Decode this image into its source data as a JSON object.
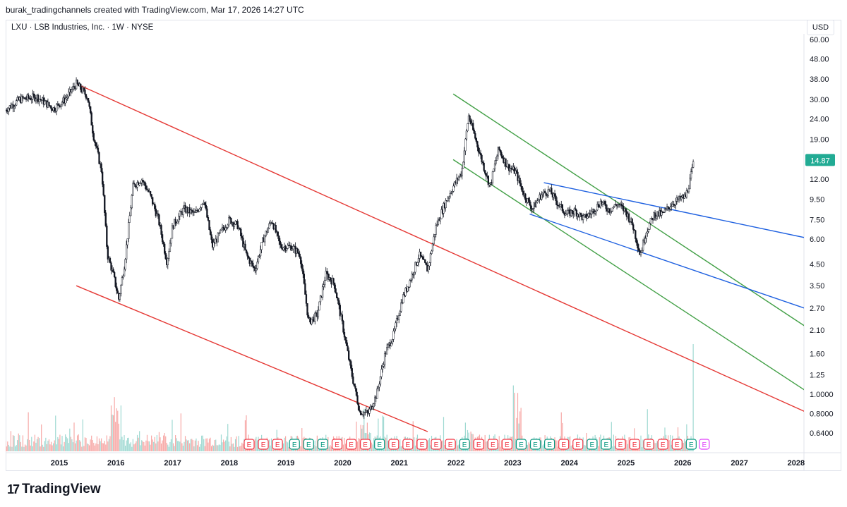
{
  "header": {
    "credit": "burak_tradingchannels created with TradingView.com, Mar 17, 2026 14:27 UTC"
  },
  "symbol_line": "LXU · LSB Industries, Inc. · 1W · NYSE",
  "currency": "USD",
  "brand": {
    "name": "TradingView",
    "mark": "17"
  },
  "colors": {
    "up": "#26a69a",
    "down": "#ef5350",
    "candle": "#131722",
    "red_channel": "#e53935",
    "green_channel": "#43a047",
    "blue_channel": "#1e60e0",
    "last_price_bg": "#22ab94",
    "earnings_red": "#f23645",
    "earnings_green": "#089981",
    "earnings_future": "#e040fb"
  },
  "chart_data": {
    "type": "candlestick",
    "title": "LXU · LSB Industries, Inc. · 1W · NYSE",
    "y_scale": "log",
    "y_ticks": [
      "60.00",
      "48.00",
      "38.00",
      "30.00",
      "24.00",
      "19.00",
      "14.87",
      "12.00",
      "9.50",
      "7.50",
      "6.00",
      "4.50",
      "3.50",
      "2.70",
      "2.10",
      "1.60",
      "1.25",
      "1.0000",
      "0.8000",
      "0.6400"
    ],
    "y_tick_values": [
      60,
      48,
      38,
      30,
      24,
      19,
      12,
      9.5,
      7.5,
      6,
      4.5,
      3.5,
      2.7,
      2.1,
      1.6,
      1.25,
      1.0,
      0.8,
      0.64
    ],
    "x_ticks": [
      "2015",
      "2016",
      "2017",
      "2018",
      "2019",
      "2020",
      "2021",
      "2022",
      "2023",
      "2024",
      "2025",
      "2026",
      "2027",
      "2028"
    ],
    "last_price": "14.87",
    "price_path": [
      [
        2014.0,
        26
      ],
      [
        2014.3,
        30
      ],
      [
        2014.6,
        31
      ],
      [
        2014.9,
        27
      ],
      [
        2015.1,
        30
      ],
      [
        2015.3,
        36
      ],
      [
        2015.5,
        31
      ],
      [
        2015.6,
        20
      ],
      [
        2015.75,
        13
      ],
      [
        2015.85,
        5.0
      ],
      [
        2015.95,
        4.0
      ],
      [
        2016.05,
        3.0
      ],
      [
        2016.15,
        4.5
      ],
      [
        2016.3,
        11
      ],
      [
        2016.45,
        12
      ],
      [
        2016.6,
        10
      ],
      [
        2016.75,
        7.5
      ],
      [
        2016.9,
        4.6
      ],
      [
        2017.0,
        7.0
      ],
      [
        2017.2,
        8.5
      ],
      [
        2017.4,
        8.0
      ],
      [
        2017.55,
        9.5
      ],
      [
        2017.7,
        5.5
      ],
      [
        2017.85,
        6.5
      ],
      [
        2018.0,
        7.5
      ],
      [
        2018.15,
        7.0
      ],
      [
        2018.3,
        5.0
      ],
      [
        2018.45,
        4.2
      ],
      [
        2018.6,
        6.0
      ],
      [
        2018.75,
        7.5
      ],
      [
        2018.9,
        5.5
      ],
      [
        2019.1,
        5.5
      ],
      [
        2019.25,
        5.0
      ],
      [
        2019.4,
        2.3
      ],
      [
        2019.55,
        2.5
      ],
      [
        2019.7,
        4.0
      ],
      [
        2019.85,
        3.6
      ],
      [
        2020.0,
        2.2
      ],
      [
        2020.15,
        1.3
      ],
      [
        2020.3,
        0.82
      ],
      [
        2020.45,
        0.8
      ],
      [
        2020.6,
        1.0
      ],
      [
        2020.75,
        1.6
      ],
      [
        2020.9,
        2.0
      ],
      [
        2021.05,
        3.0
      ],
      [
        2021.2,
        3.8
      ],
      [
        2021.35,
        5.0
      ],
      [
        2021.5,
        4.2
      ],
      [
        2021.65,
        7.0
      ],
      [
        2021.8,
        9.0
      ],
      [
        2021.95,
        11
      ],
      [
        2022.1,
        13
      ],
      [
        2022.22,
        25
      ],
      [
        2022.3,
        21
      ],
      [
        2022.45,
        15
      ],
      [
        2022.6,
        11
      ],
      [
        2022.75,
        17
      ],
      [
        2022.9,
        14
      ],
      [
        2023.05,
        13
      ],
      [
        2023.2,
        10
      ],
      [
        2023.35,
        8.5
      ],
      [
        2023.5,
        10
      ],
      [
        2023.65,
        10.5
      ],
      [
        2023.8,
        9.0
      ],
      [
        2023.95,
        8.0
      ],
      [
        2024.1,
        8.3
      ],
      [
        2024.25,
        7.6
      ],
      [
        2024.4,
        8.2
      ],
      [
        2024.55,
        9.2
      ],
      [
        2024.7,
        8.4
      ],
      [
        2024.85,
        9.0
      ],
      [
        2025.0,
        8.2
      ],
      [
        2025.12,
        7.0
      ],
      [
        2025.25,
        5.0
      ],
      [
        2025.35,
        6.5
      ],
      [
        2025.5,
        8.0
      ],
      [
        2025.65,
        8.0
      ],
      [
        2025.8,
        9.0
      ],
      [
        2025.95,
        9.5
      ],
      [
        2026.05,
        9.8
      ],
      [
        2026.12,
        11.5
      ],
      [
        2026.2,
        14.87
      ]
    ],
    "trendlines": [
      {
        "name": "red-channel-top",
        "color": "red",
        "from": [
          2015.3,
          36
        ],
        "to": [
          2028.15,
          0.82
        ]
      },
      {
        "name": "red-channel-bottom",
        "color": "red",
        "from": [
          2015.3,
          3.5
        ],
        "to": [
          2021.5,
          0.65
        ]
      },
      {
        "name": "green-channel-top",
        "color": "green",
        "from": [
          2021.95,
          32
        ],
        "to": [
          2028.15,
          2.2
        ]
      },
      {
        "name": "green-channel-bottom",
        "color": "green",
        "from": [
          2021.95,
          15
        ],
        "to": [
          2028.15,
          1.05
        ]
      },
      {
        "name": "blue-wedge-top",
        "color": "blue",
        "from": [
          2023.55,
          11.5
        ],
        "to": [
          2028.15,
          6.1
        ]
      },
      {
        "name": "blue-wedge-bottom",
        "color": "blue",
        "from": [
          2023.3,
          8.0
        ],
        "to": [
          2028.15,
          2.7
        ]
      }
    ],
    "earnings": [
      {
        "x": 2018.35,
        "label": "E",
        "kind": "red"
      },
      {
        "x": 2018.6,
        "label": "E",
        "kind": "red"
      },
      {
        "x": 2018.85,
        "label": "E",
        "kind": "red"
      },
      {
        "x": 2019.15,
        "label": "E",
        "kind": "green"
      },
      {
        "x": 2019.4,
        "label": "E",
        "kind": "green"
      },
      {
        "x": 2019.65,
        "label": "E",
        "kind": "green"
      },
      {
        "x": 2019.9,
        "label": "E",
        "kind": "red"
      },
      {
        "x": 2020.15,
        "label": "E",
        "kind": "red"
      },
      {
        "x": 2020.4,
        "label": "E",
        "kind": "red"
      },
      {
        "x": 2020.65,
        "label": "E",
        "kind": "green"
      },
      {
        "x": 2020.9,
        "label": "E",
        "kind": "red"
      },
      {
        "x": 2021.15,
        "label": "E",
        "kind": "red"
      },
      {
        "x": 2021.4,
        "label": "E",
        "kind": "red"
      },
      {
        "x": 2021.65,
        "label": "E",
        "kind": "red"
      },
      {
        "x": 2021.9,
        "label": "E",
        "kind": "red"
      },
      {
        "x": 2022.15,
        "label": "E",
        "kind": "green"
      },
      {
        "x": 2022.4,
        "label": "E",
        "kind": "red"
      },
      {
        "x": 2022.65,
        "label": "E",
        "kind": "red"
      },
      {
        "x": 2022.9,
        "label": "E",
        "kind": "red"
      },
      {
        "x": 2023.15,
        "label": "E",
        "kind": "green"
      },
      {
        "x": 2023.4,
        "label": "E",
        "kind": "green"
      },
      {
        "x": 2023.65,
        "label": "E",
        "kind": "green"
      },
      {
        "x": 2023.9,
        "label": "E",
        "kind": "red"
      },
      {
        "x": 2024.15,
        "label": "E",
        "kind": "red"
      },
      {
        "x": 2024.4,
        "label": "E",
        "kind": "green"
      },
      {
        "x": 2024.65,
        "label": "E",
        "kind": "green"
      },
      {
        "x": 2024.9,
        "label": "E",
        "kind": "red"
      },
      {
        "x": 2025.15,
        "label": "E",
        "kind": "red"
      },
      {
        "x": 2025.4,
        "label": "E",
        "kind": "red"
      },
      {
        "x": 2025.65,
        "label": "E",
        "kind": "red"
      },
      {
        "x": 2025.9,
        "label": "E",
        "kind": "red"
      },
      {
        "x": 2026.15,
        "label": "E",
        "kind": "green"
      },
      {
        "x": 2026.38,
        "label": "E",
        "kind": "future"
      }
    ],
    "grid": false,
    "legend": "none"
  }
}
